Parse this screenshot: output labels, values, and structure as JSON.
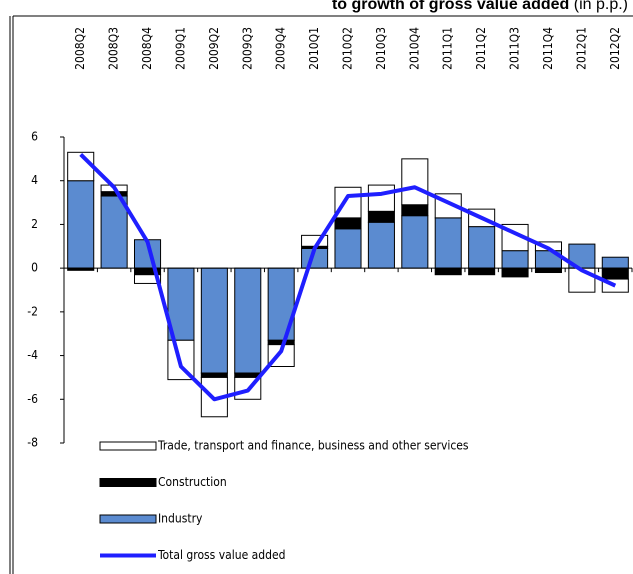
{
  "chart_data": {
    "type": "bar",
    "stacked": true,
    "title": "to growth of gross value added",
    "title_unit": "(in p.p.)",
    "categories": [
      "2008Q2",
      "2008Q3",
      "2008Q4",
      "2009Q1",
      "2009Q2",
      "2009Q3",
      "2009Q4",
      "2010Q1",
      "2010Q2",
      "2010Q3",
      "2010Q4",
      "2011Q1",
      "2011Q2",
      "2011Q3",
      "2011Q4",
      "2012Q1",
      "2012Q2"
    ],
    "series": [
      {
        "name": "Trade, transport and finance, business and other services",
        "type": "bar",
        "color": "#ffffff",
        "values": [
          1.3,
          0.3,
          -0.4,
          -1.8,
          -1.8,
          -1.0,
          -1.0,
          0.5,
          1.4,
          1.2,
          2.1,
          1.1,
          0.8,
          1.2,
          0.4,
          -1.1,
          -0.6
        ]
      },
      {
        "name": "Construction",
        "type": "bar",
        "color": "#000000",
        "values": [
          -0.1,
          0.2,
          -0.3,
          0,
          -0.2,
          -0.2,
          -0.2,
          0.1,
          0.5,
          0.5,
          0.5,
          -0.3,
          -0.3,
          -0.4,
          -0.2,
          0,
          -0.5
        ]
      },
      {
        "name": "Industry",
        "type": "bar",
        "color": "#5b8bd0",
        "values": [
          4.0,
          3.3,
          1.3,
          -3.3,
          -4.8,
          -4.8,
          -3.3,
          0.9,
          1.8,
          2.1,
          2.4,
          2.3,
          1.9,
          0.8,
          0.8,
          1.1,
          0.5
        ]
      },
      {
        "name": "Total gross value added",
        "type": "line",
        "color": "#1f1fff",
        "values": [
          5.2,
          3.7,
          1.2,
          -4.5,
          -6.0,
          -5.6,
          -3.8,
          0.9,
          3.3,
          3.4,
          3.7,
          3.0,
          2.3,
          1.6,
          0.9,
          -0.1,
          -0.8
        ]
      }
    ],
    "ylim": [
      -8,
      6
    ],
    "yticks": [
      -8,
      -6,
      -4,
      -2,
      0,
      2,
      4,
      6
    ]
  }
}
